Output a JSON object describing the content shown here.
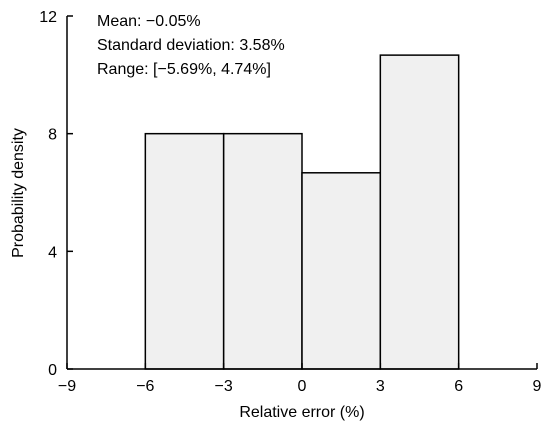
{
  "chart_data": {
    "type": "bar",
    "subtype": "histogram",
    "bins": [
      {
        "x0": -6,
        "x1": -3,
        "density": 8.0
      },
      {
        "x0": -3,
        "x1": 0,
        "density": 8.0
      },
      {
        "x0": 0,
        "x1": 3,
        "density": 6.67
      },
      {
        "x0": 3,
        "x1": 6,
        "density": 10.67
      }
    ],
    "xlabel": "Relative error (%)",
    "ylabel": "Probability density",
    "xlim": [
      -9,
      9
    ],
    "ylim": [
      0,
      12
    ],
    "xticks": [
      -9,
      -6,
      -3,
      0,
      3,
      6,
      9
    ],
    "xtick_labels": [
      "−9",
      "−6",
      "−3",
      "0",
      "3",
      "6",
      "9"
    ],
    "yticks": [
      0,
      4,
      8,
      12
    ],
    "ytick_labels": [
      "0",
      "4",
      "8",
      "12"
    ],
    "grid": false,
    "annotations": [
      "Mean: −0.05%",
      "Standard deviation: 3.58%",
      "Range: [−5.69%, 4.74%]"
    ],
    "bar_fill_color": "#f0f0f0",
    "bar_edge_color": "#000000"
  }
}
